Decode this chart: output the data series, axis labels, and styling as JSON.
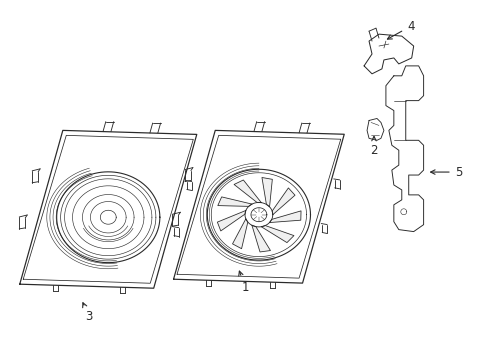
{
  "background_color": "#ffffff",
  "line_color": "#2a2a2a",
  "line_width": 0.8,
  "label_color": "#000000",
  "figsize": [
    4.9,
    3.6
  ],
  "dpi": 100
}
